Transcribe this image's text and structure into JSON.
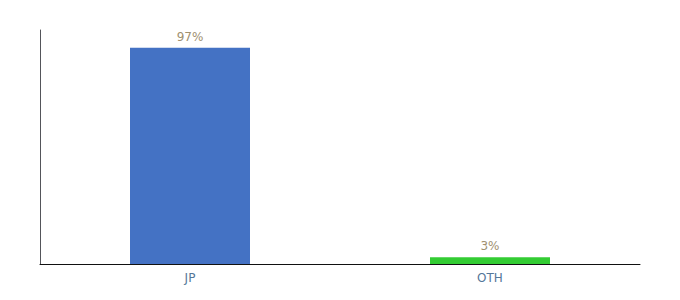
{
  "chart_data": {
    "type": "bar",
    "categories": [
      "JP",
      "OTH"
    ],
    "values": [
      97,
      3
    ],
    "value_labels": [
      "97%",
      "3%"
    ],
    "colors": [
      "#4472c4",
      "#33cc33"
    ],
    "ylim": [
      0,
      105
    ],
    "grid": false,
    "data_labels": true,
    "tick_labels": "x"
  }
}
